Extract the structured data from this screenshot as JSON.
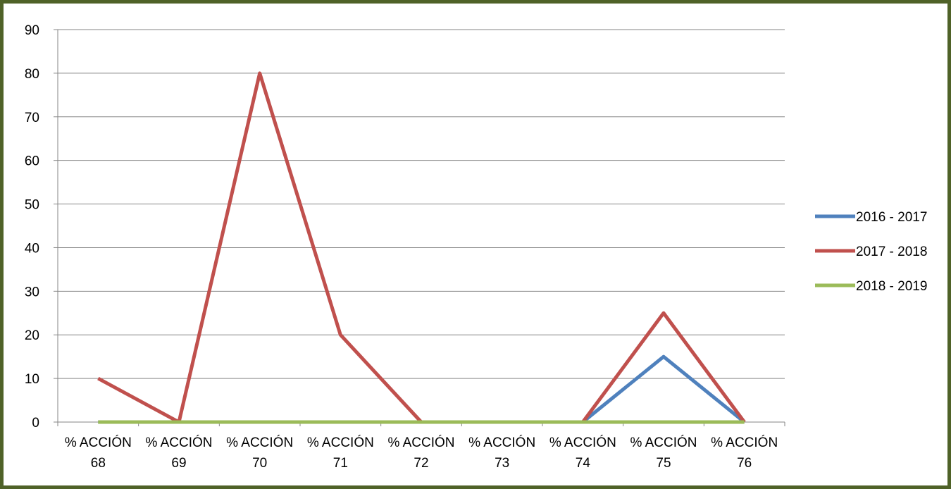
{
  "chart_data": {
    "type": "line",
    "title": "",
    "xlabel": "",
    "ylabel": "",
    "categories": [
      [
        "% ACCIÓN",
        "68"
      ],
      [
        "% ACCIÓN",
        "69"
      ],
      [
        "% ACCIÓN",
        "70"
      ],
      [
        "% ACCIÓN",
        "71"
      ],
      [
        "% ACCIÓN",
        "72"
      ],
      [
        "% ACCIÓN",
        "73"
      ],
      [
        "% ACCIÓN",
        "74"
      ],
      [
        "% ACCIÓN",
        "75"
      ],
      [
        "% ACCIÓN",
        "76"
      ]
    ],
    "ylim": [
      0,
      90
    ],
    "yticks": [
      0,
      10,
      20,
      30,
      40,
      50,
      60,
      70,
      80,
      90
    ],
    "grid": true,
    "legend_position": "right",
    "series": [
      {
        "name": "2016 - 2017",
        "color": "#4f81bd",
        "values": [
          0,
          0,
          0,
          0,
          0,
          0,
          0,
          15,
          0
        ]
      },
      {
        "name": "2017 - 2018",
        "color": "#c0504d",
        "values": [
          10,
          0,
          80,
          20,
          0,
          0,
          0,
          25,
          0
        ]
      },
      {
        "name": "2018 - 2019",
        "color": "#9bbb59",
        "values": [
          0,
          0,
          0,
          0,
          0,
          0,
          0,
          0,
          0
        ]
      }
    ]
  }
}
